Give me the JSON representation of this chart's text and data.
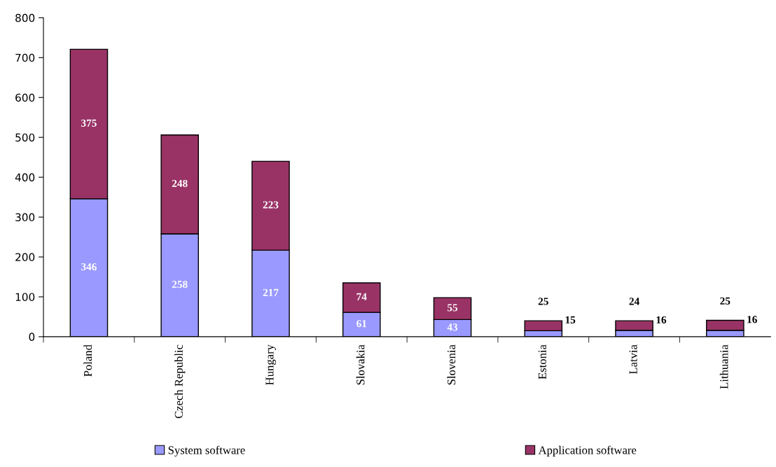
{
  "chart_data": {
    "type": "bar",
    "stacked": true,
    "categories": [
      "Poland",
      "Czech Republic",
      "Hungary",
      "Slovakia",
      "Slovenia",
      "Estonia",
      "Latvia",
      "Lithuania"
    ],
    "series": [
      {
        "name": "System software",
        "color": "#9999ff",
        "values": [
          346,
          258,
          217,
          61,
          43,
          15,
          16,
          16
        ]
      },
      {
        "name": "Application software",
        "color": "#993366",
        "values": [
          375,
          248,
          223,
          74,
          55,
          25,
          24,
          25
        ]
      }
    ],
    "ylim": [
      0,
      800
    ],
    "yticks": [
      0,
      100,
      200,
      300,
      400,
      500,
      600,
      700,
      800
    ],
    "data_labels": true,
    "legend": "bottom",
    "grid": false
  }
}
